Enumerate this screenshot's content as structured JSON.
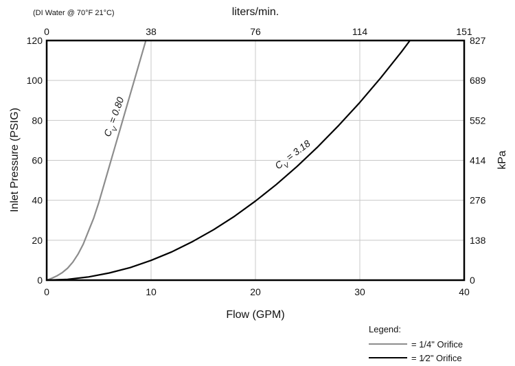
{
  "chart_data": {
    "type": "line",
    "note": "(DI Water @ 70°F   21°C)",
    "xlabel": "Flow (GPM)",
    "ylabel": "Inlet Pressure (PSIG)",
    "x2label": "liters/min.",
    "y2label": "kPa",
    "xlim": [
      0,
      40
    ],
    "ylim": [
      0,
      120
    ],
    "x_ticks": [
      "0",
      "10",
      "20",
      "30",
      "40"
    ],
    "y_ticks": [
      "0",
      "20",
      "40",
      "60",
      "80",
      "100",
      "120"
    ],
    "x2_ticks": [
      "0",
      "38",
      "76",
      "114",
      "151"
    ],
    "y2_ticks": [
      "0",
      "138",
      "276",
      "414",
      "552",
      "689",
      "827"
    ],
    "grid": true,
    "legend": {
      "title": "Legend:",
      "position": "bottom-right",
      "entries": [
        "= 1/4\" Orifice",
        "= 1⁄2\" Orifice"
      ]
    },
    "series": [
      {
        "color": "#8c8c8c",
        "annotation": {
          "sub": "V",
          "text": " = 0.80",
          "lead": "C"
        },
        "x": [
          0,
          0.5,
          1,
          1.5,
          2,
          2.5,
          3,
          3.5,
          4,
          4.5,
          5,
          5.5,
          6,
          6.5,
          7,
          7.5,
          8,
          8.5,
          9,
          9.5
        ],
        "y": [
          0,
          1,
          2.2,
          3.8,
          6,
          9,
          13,
          18,
          24.5,
          31,
          39,
          48,
          57,
          66,
          75,
          84,
          93,
          102,
          111,
          120
        ]
      },
      {
        "color": "#000000",
        "annotation": {
          "sub": "V",
          "text": " = 3.18",
          "lead": "C"
        },
        "x": [
          0,
          2,
          4,
          6,
          8,
          10,
          12,
          14,
          16,
          18,
          20,
          22,
          24,
          26,
          28,
          30,
          32,
          34,
          34.8
        ],
        "y": [
          0,
          0.4,
          1.6,
          3.6,
          6.3,
          9.9,
          14.2,
          19.4,
          25.3,
          32,
          39.6,
          47.9,
          57,
          66.9,
          77.6,
          89,
          101.3,
          114.4,
          120
        ]
      }
    ]
  }
}
